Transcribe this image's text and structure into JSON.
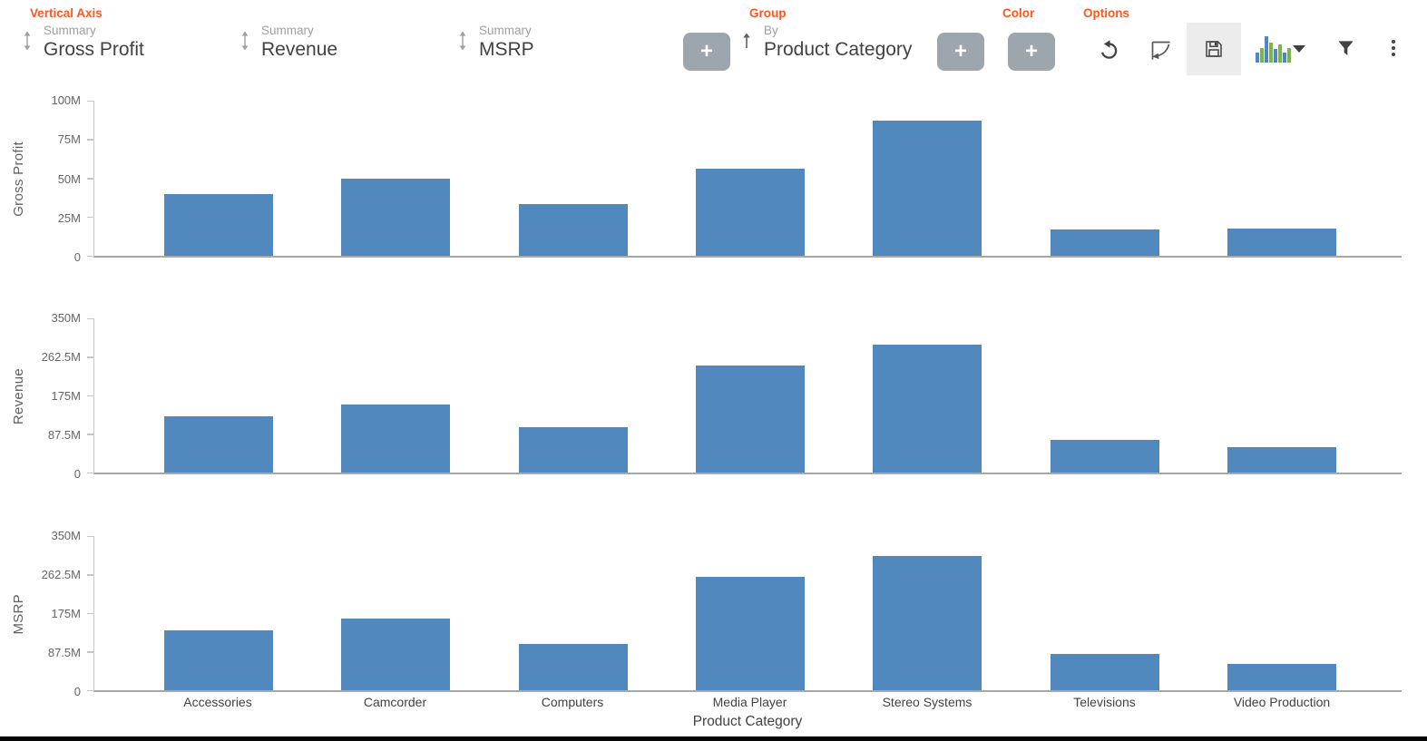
{
  "header": {
    "accent_color": "#FF5722",
    "vertical_axis_label": "Vertical Axis",
    "summary_fields": [
      {
        "label": "Summary",
        "value": "Gross Profit"
      },
      {
        "label": "Summary",
        "value": "Revenue"
      },
      {
        "label": "Summary",
        "value": "MSRP"
      }
    ],
    "group_section_label": "Group",
    "group_field": {
      "label": "By",
      "value": "Product Category"
    },
    "color_section_label": "Color",
    "options_section_label": "Options",
    "add_button_label": "+",
    "toolbar_icons": [
      "undo-icon",
      "trend-curve-icon",
      "save-icon",
      "chart-type-bars-icon",
      "filter-icon",
      "more-vertical-icon"
    ],
    "chart_type_icon_colors": {
      "blue": "#4E86C8",
      "green": "#7CB54A"
    }
  },
  "chart_data": [
    {
      "type": "bar",
      "title": "",
      "ylabel": "Gross Profit",
      "xlabel": "Product Category",
      "units": "millions (M)",
      "categories": [
        "Accessories",
        "Camcorder",
        "Computers",
        "Media Player",
        "Stereo Systems",
        "Televisions",
        "Video Production"
      ],
      "values": [
        40,
        50,
        33.5,
        56,
        87,
        17,
        17.5
      ],
      "ylim": [
        0,
        100
      ],
      "yticks": [
        "0",
        "25M",
        "50M",
        "75M",
        "100M"
      ],
      "bar_color": "#5188BE",
      "grid": false,
      "legend": null
    },
    {
      "type": "bar",
      "title": "",
      "ylabel": "Revenue",
      "xlabel": "Product Category",
      "units": "millions (M)",
      "categories": [
        "Accessories",
        "Camcorder",
        "Computers",
        "Media Player",
        "Stereo Systems",
        "Televisions",
        "Video Production"
      ],
      "values": [
        127,
        154,
        102,
        244,
        291,
        75,
        58
      ],
      "ylim": [
        0,
        350
      ],
      "yticks": [
        "0",
        "87.5M",
        "175M",
        "262.5M",
        "350M"
      ],
      "bar_color": "#5188BE",
      "grid": false,
      "legend": null
    },
    {
      "type": "bar",
      "title": "",
      "ylabel": "MSRP",
      "xlabel": "Product Category",
      "units": "millions (M)",
      "categories": [
        "Accessories",
        "Camcorder",
        "Computers",
        "Media Player",
        "Stereo Systems",
        "Televisions",
        "Video Production"
      ],
      "values": [
        135,
        162,
        106,
        257,
        304,
        82,
        59
      ],
      "ylim": [
        0,
        350
      ],
      "yticks": [
        "0",
        "87.5M",
        "175M",
        "262.5M",
        "350M"
      ],
      "bar_color": "#5188BE",
      "grid": false,
      "legend": null
    }
  ]
}
